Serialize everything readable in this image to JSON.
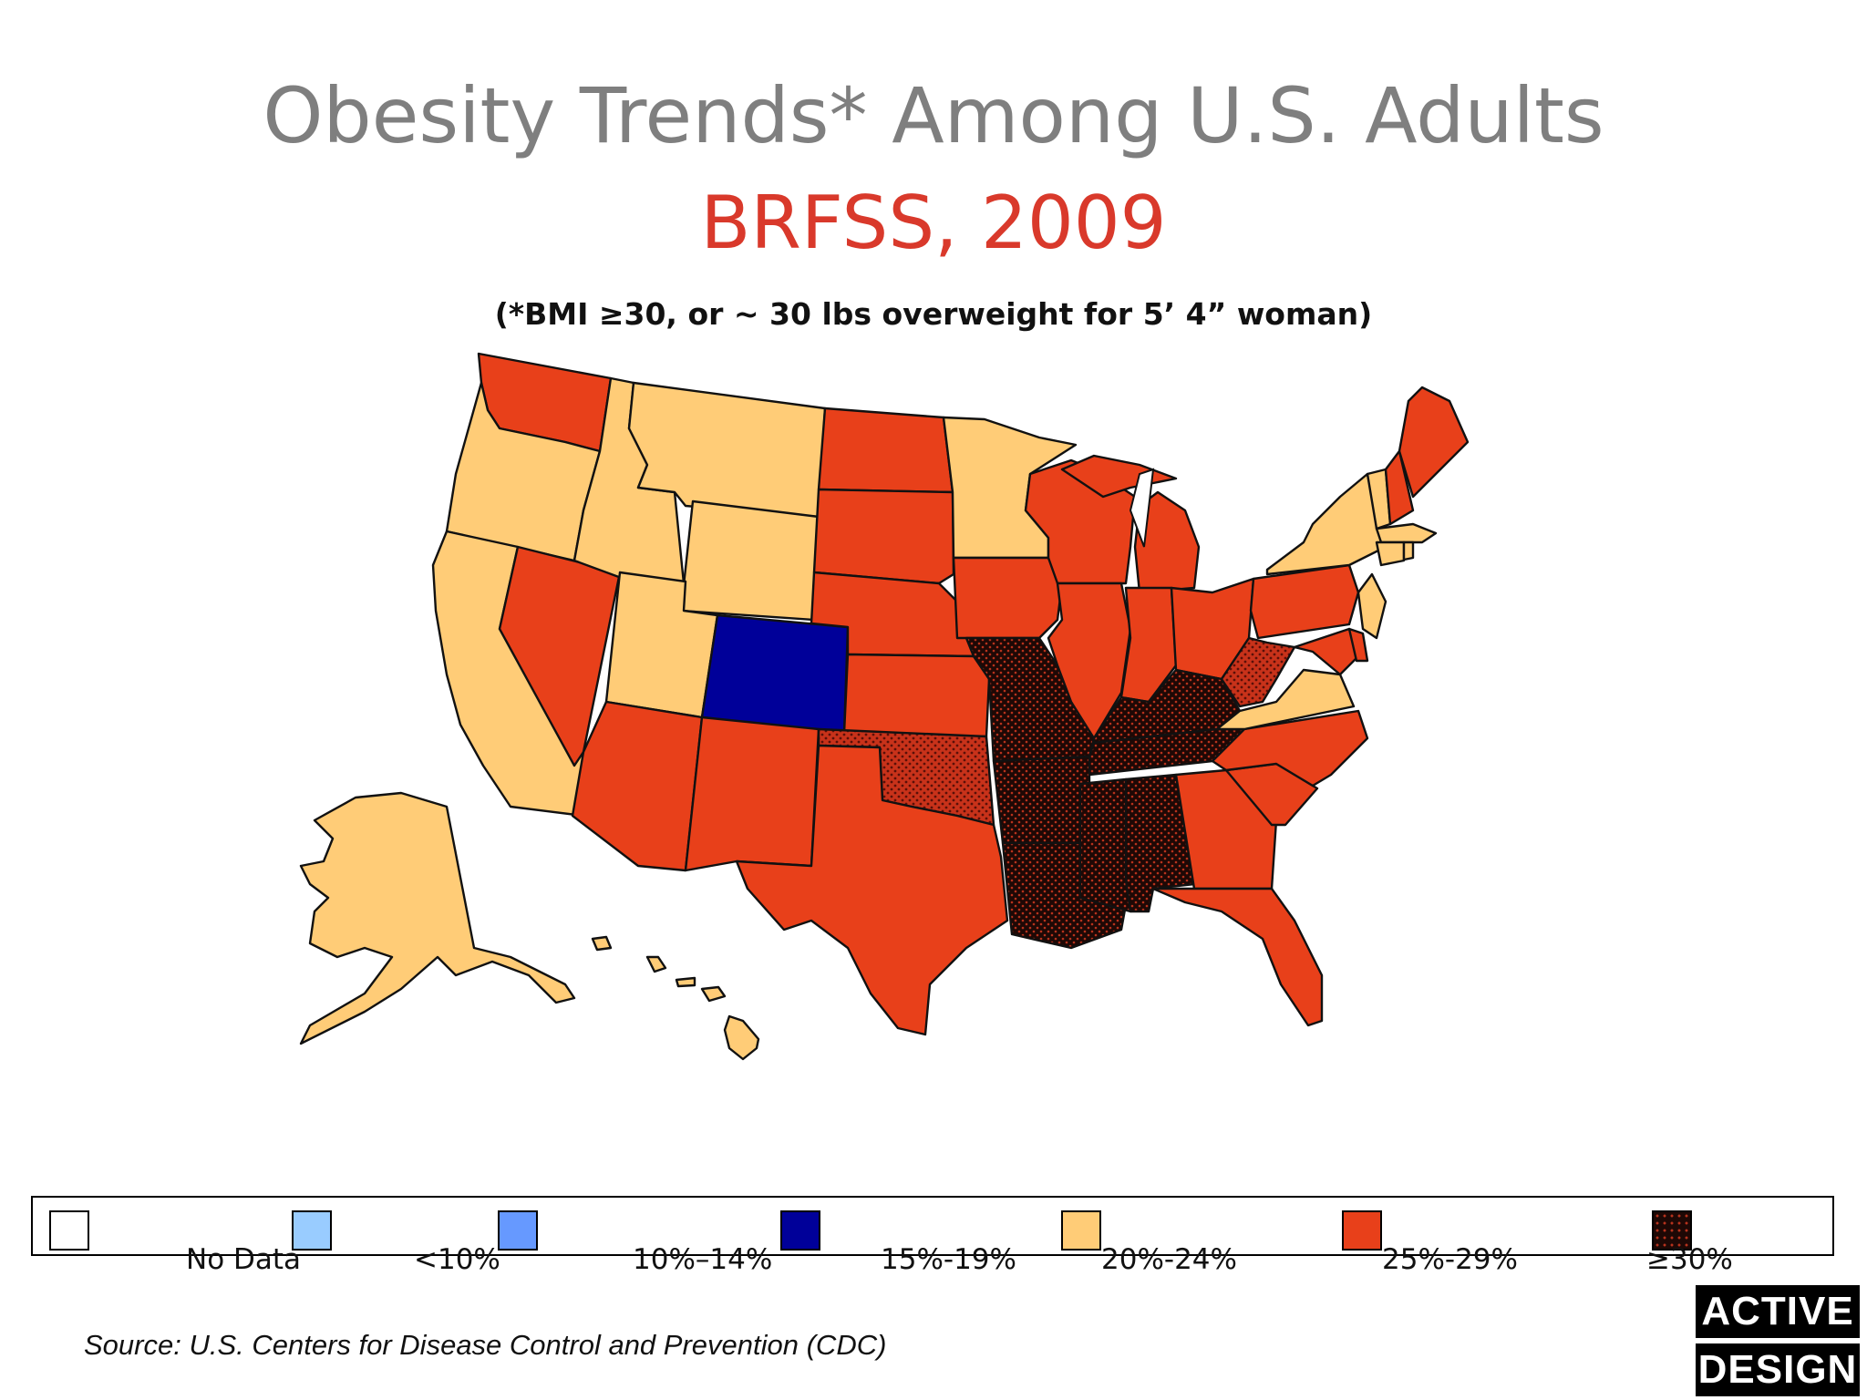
{
  "title": "Obesity Trends* Among U.S. Adults",
  "subtitle": "BRFSS, 2009",
  "note": "(*BMI ≥30, or ~ 30 lbs overweight for 5’ 4” woman)",
  "legend": [
    {
      "label": "No Data",
      "color": "#ffffff",
      "pattern": false
    },
    {
      "label": "<10%",
      "color": "#99ccff",
      "pattern": false
    },
    {
      "label": "10%–14%",
      "color": "#6699ff",
      "pattern": false
    },
    {
      "label": "15%-19%",
      "color": "#000099",
      "pattern": false
    },
    {
      "label": "20%-24%",
      "color": "#ffcc77",
      "pattern": false
    },
    {
      "label": "25%-29%",
      "color": "#e8401a",
      "pattern": false
    },
    {
      "label": "≥30%",
      "color": "#5a1008",
      "pattern": true
    }
  ],
  "source": "Source: U.S. Centers for Disease Control and Prevention (CDC)",
  "logo": {
    "line1": "ACTIVE",
    "line2": "DESIGN"
  },
  "colors": {
    "c20": "#ffcc77",
    "c25": "#e8401a",
    "c30": "#5a1008",
    "c15": "#000099"
  }
}
